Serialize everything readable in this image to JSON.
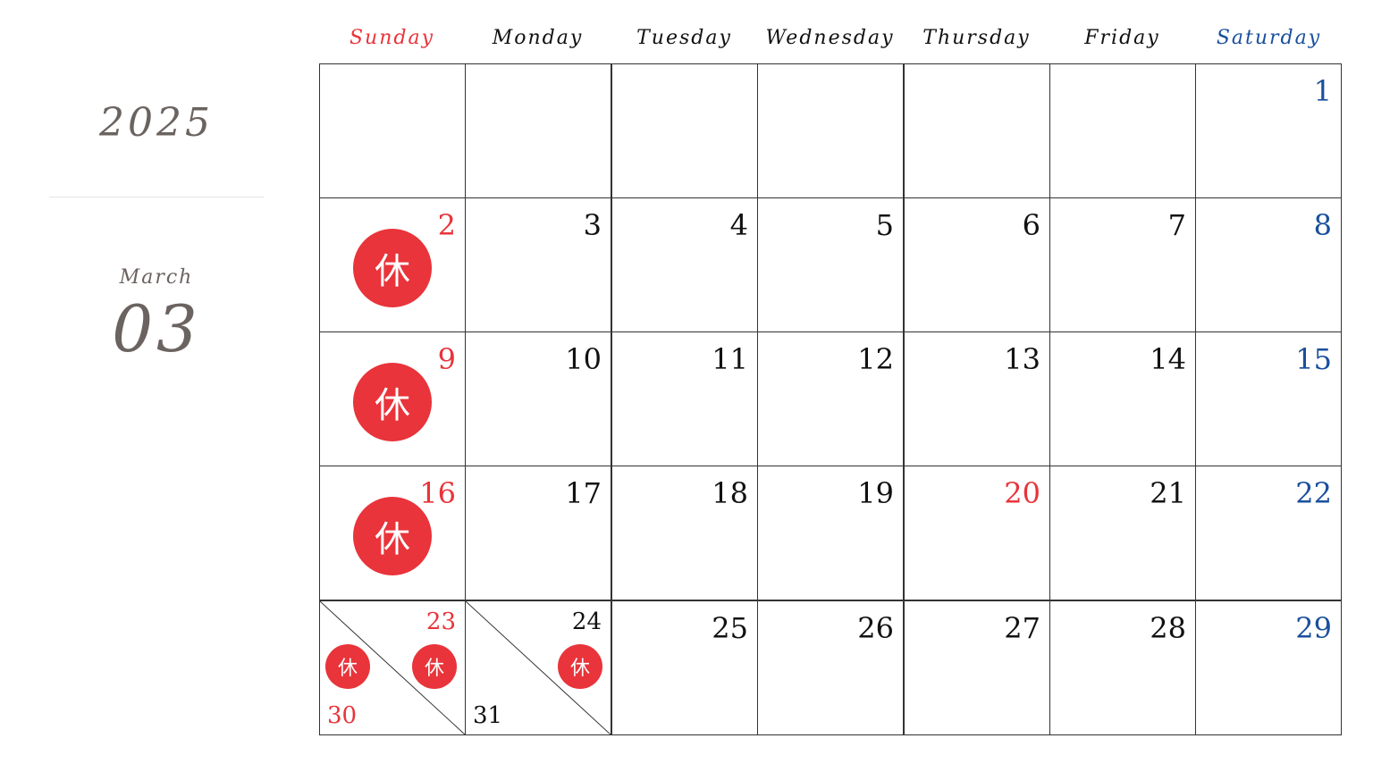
{
  "year": "2025",
  "month_name": "March",
  "month_number": "03",
  "holiday_glyph": "休",
  "weekdays": [
    "Sunday",
    "Monday",
    "Tuesday",
    "Wednesday",
    "Thursday",
    "Friday",
    "Saturday"
  ],
  "colors": {
    "red": "#e8343a",
    "blue": "#1a4f9c",
    "text": "#111111",
    "muted": "#6b6360"
  },
  "weeks": [
    [
      {
        "day": ""
      },
      {
        "day": ""
      },
      {
        "day": ""
      },
      {
        "day": ""
      },
      {
        "day": ""
      },
      {
        "day": ""
      },
      {
        "day": "1",
        "color": "blue"
      }
    ],
    [
      {
        "day": "2",
        "color": "red",
        "closed": true
      },
      {
        "day": "3"
      },
      {
        "day": "4"
      },
      {
        "day": "5"
      },
      {
        "day": "6"
      },
      {
        "day": "7"
      },
      {
        "day": "8",
        "color": "blue"
      }
    ],
    [
      {
        "day": "9",
        "color": "red",
        "closed": true
      },
      {
        "day": "10"
      },
      {
        "day": "11"
      },
      {
        "day": "12"
      },
      {
        "day": "13"
      },
      {
        "day": "14"
      },
      {
        "day": "15",
        "color": "blue"
      }
    ],
    [
      {
        "day": "16",
        "color": "red",
        "closed": true
      },
      {
        "day": "17"
      },
      {
        "day": "18"
      },
      {
        "day": "19"
      },
      {
        "day": "20",
        "color": "red"
      },
      {
        "day": "21"
      },
      {
        "day": "22",
        "color": "blue"
      }
    ],
    [
      {
        "split": true,
        "top": "23",
        "bottom": "30",
        "color": "red",
        "top_closed": true,
        "bottom_closed": true
      },
      {
        "split": true,
        "top": "24",
        "bottom": "31",
        "top_closed": true,
        "bottom_closed": false
      },
      {
        "day": "25"
      },
      {
        "day": "26"
      },
      {
        "day": "27"
      },
      {
        "day": "28"
      },
      {
        "day": "29",
        "color": "blue"
      }
    ]
  ]
}
